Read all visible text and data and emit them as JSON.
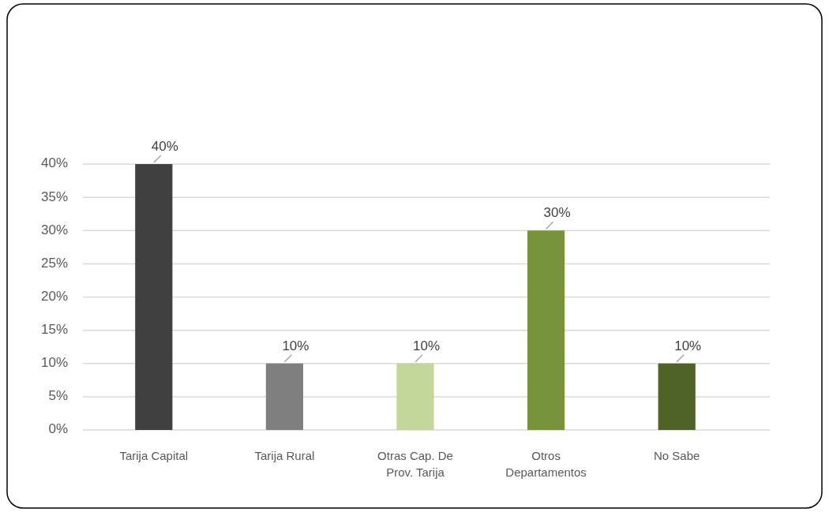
{
  "chart_data": {
    "type": "bar",
    "categories": [
      "Tarija Capital",
      "Tarija Rural",
      "Otras Cap. De Prov. Tarija",
      "Otros Departamentos",
      "No Sabe"
    ],
    "values": [
      40,
      10,
      10,
      30,
      10
    ],
    "colors": [
      "#404040",
      "#7f7f7f",
      "#c4d79b",
      "#77933c",
      "#4f6228"
    ],
    "value_labels": [
      "40%",
      "10%",
      "10%",
      "30%",
      "10%"
    ],
    "ylim": [
      0,
      40
    ],
    "yticks": [
      {
        "value": 0,
        "label": "0%"
      },
      {
        "value": 5,
        "label": "5%"
      },
      {
        "value": 10,
        "label": "10%"
      },
      {
        "value": 15,
        "label": "15%"
      },
      {
        "value": 20,
        "label": "20%"
      },
      {
        "value": 25,
        "label": "25%"
      },
      {
        "value": 30,
        "label": "30%"
      },
      {
        "value": 35,
        "label": "35%"
      },
      {
        "value": 40,
        "label": "40%"
      }
    ],
    "grid": "y"
  }
}
